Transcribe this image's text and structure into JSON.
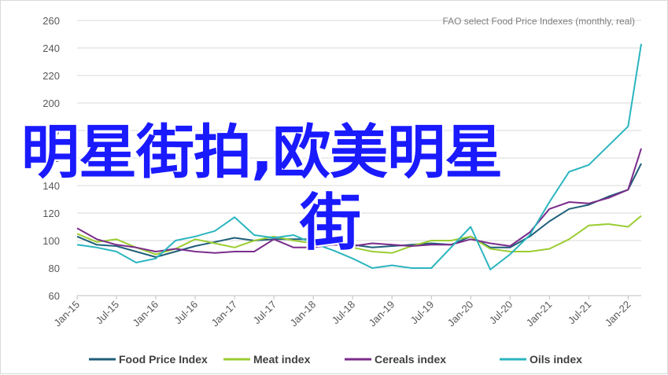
{
  "overlay_text": {
    "line1": "明星街拍,欧美明星",
    "line2": "街"
  },
  "chart_data": {
    "type": "line",
    "note": "FAO select Food Price Indexes (monthly, real)",
    "ylim": [
      60,
      260
    ],
    "yticks": [
      60,
      80,
      100,
      120,
      140,
      160,
      180,
      200,
      220,
      240,
      260
    ],
    "x_tick_labels": [
      "Jan-15",
      "Jul-15",
      "Jan-16",
      "Jul-16",
      "Jan-17",
      "Jul-17",
      "Jan-18",
      "Jul-18",
      "Jan-19",
      "Jul-19",
      "Jan-20",
      "Jul-20",
      "Jan-21",
      "Jul-21",
      "Jan-22"
    ],
    "x_start": "2015-01",
    "x_end": "2022-03",
    "legend_position": "bottom",
    "grid": true,
    "series": [
      {
        "name": "Food Price Index",
        "color": "#1f5f7a",
        "x": [
          "2015-01",
          "2015-04",
          "2015-07",
          "2015-10",
          "2016-01",
          "2016-04",
          "2016-07",
          "2016-10",
          "2017-01",
          "2017-04",
          "2017-07",
          "2017-10",
          "2018-01",
          "2018-04",
          "2018-07",
          "2018-10",
          "2019-01",
          "2019-04",
          "2019-07",
          "2019-10",
          "2020-01",
          "2020-04",
          "2020-07",
          "2020-10",
          "2021-01",
          "2021-04",
          "2021-07",
          "2021-10",
          "2022-01",
          "2022-03"
        ],
        "y": [
          103,
          97,
          96,
          92,
          88,
          92,
          96,
          99,
          102,
          100,
          101,
          101,
          101,
          101,
          97,
          95,
          96,
          97,
          98,
          97,
          103,
          95,
          95,
          103,
          114,
          123,
          126,
          132,
          137,
          156
        ]
      },
      {
        "name": "Meat index",
        "color": "#9acd32",
        "x": [
          "2015-01",
          "2015-04",
          "2015-07",
          "2015-10",
          "2016-01",
          "2016-04",
          "2016-07",
          "2016-10",
          "2017-01",
          "2017-04",
          "2017-07",
          "2017-10",
          "2018-01",
          "2018-04",
          "2018-07",
          "2018-10",
          "2019-01",
          "2019-04",
          "2019-07",
          "2019-10",
          "2020-01",
          "2020-04",
          "2020-07",
          "2020-10",
          "2021-01",
          "2021-04",
          "2021-07",
          "2021-10",
          "2022-01",
          "2022-03"
        ],
        "y": [
          105,
          99,
          101,
          95,
          90,
          94,
          101,
          98,
          95,
          100,
          103,
          100,
          98,
          98,
          95,
          92,
          91,
          96,
          100,
          100,
          103,
          94,
          92,
          92,
          94,
          101,
          111,
          112,
          110,
          118
        ]
      },
      {
        "name": "Cereals index",
        "color": "#7b2d8b",
        "x": [
          "2015-01",
          "2015-04",
          "2015-07",
          "2015-10",
          "2016-01",
          "2016-04",
          "2016-07",
          "2016-10",
          "2017-01",
          "2017-04",
          "2017-07",
          "2017-10",
          "2018-01",
          "2018-04",
          "2018-07",
          "2018-10",
          "2019-01",
          "2019-04",
          "2019-07",
          "2019-10",
          "2020-01",
          "2020-04",
          "2020-07",
          "2020-10",
          "2021-01",
          "2021-04",
          "2021-07",
          "2021-10",
          "2022-01",
          "2022-03"
        ],
        "y": [
          109,
          101,
          97,
          95,
          92,
          94,
          92,
          91,
          92,
          92,
          101,
          95,
          95,
          97,
          96,
          98,
          97,
          96,
          97,
          97,
          101,
          98,
          96,
          106,
          123,
          128,
          127,
          131,
          137,
          167
        ]
      },
      {
        "name": "Oils index",
        "color": "#2bb5bf",
        "x": [
          "2015-01",
          "2015-04",
          "2015-07",
          "2015-10",
          "2016-01",
          "2016-04",
          "2016-07",
          "2016-10",
          "2017-01",
          "2017-04",
          "2017-07",
          "2017-10",
          "2018-01",
          "2018-04",
          "2018-07",
          "2018-10",
          "2019-01",
          "2019-04",
          "2019-07",
          "2019-10",
          "2020-01",
          "2020-04",
          "2020-07",
          "2020-10",
          "2021-01",
          "2021-04",
          "2021-07",
          "2021-10",
          "2022-01",
          "2022-03"
        ],
        "y": [
          97,
          95,
          92,
          84,
          87,
          100,
          103,
          107,
          117,
          104,
          102,
          104,
          98,
          93,
          87,
          80,
          82,
          80,
          80,
          95,
          110,
          79,
          90,
          104,
          128,
          150,
          155,
          169,
          183,
          243
        ]
      }
    ]
  }
}
